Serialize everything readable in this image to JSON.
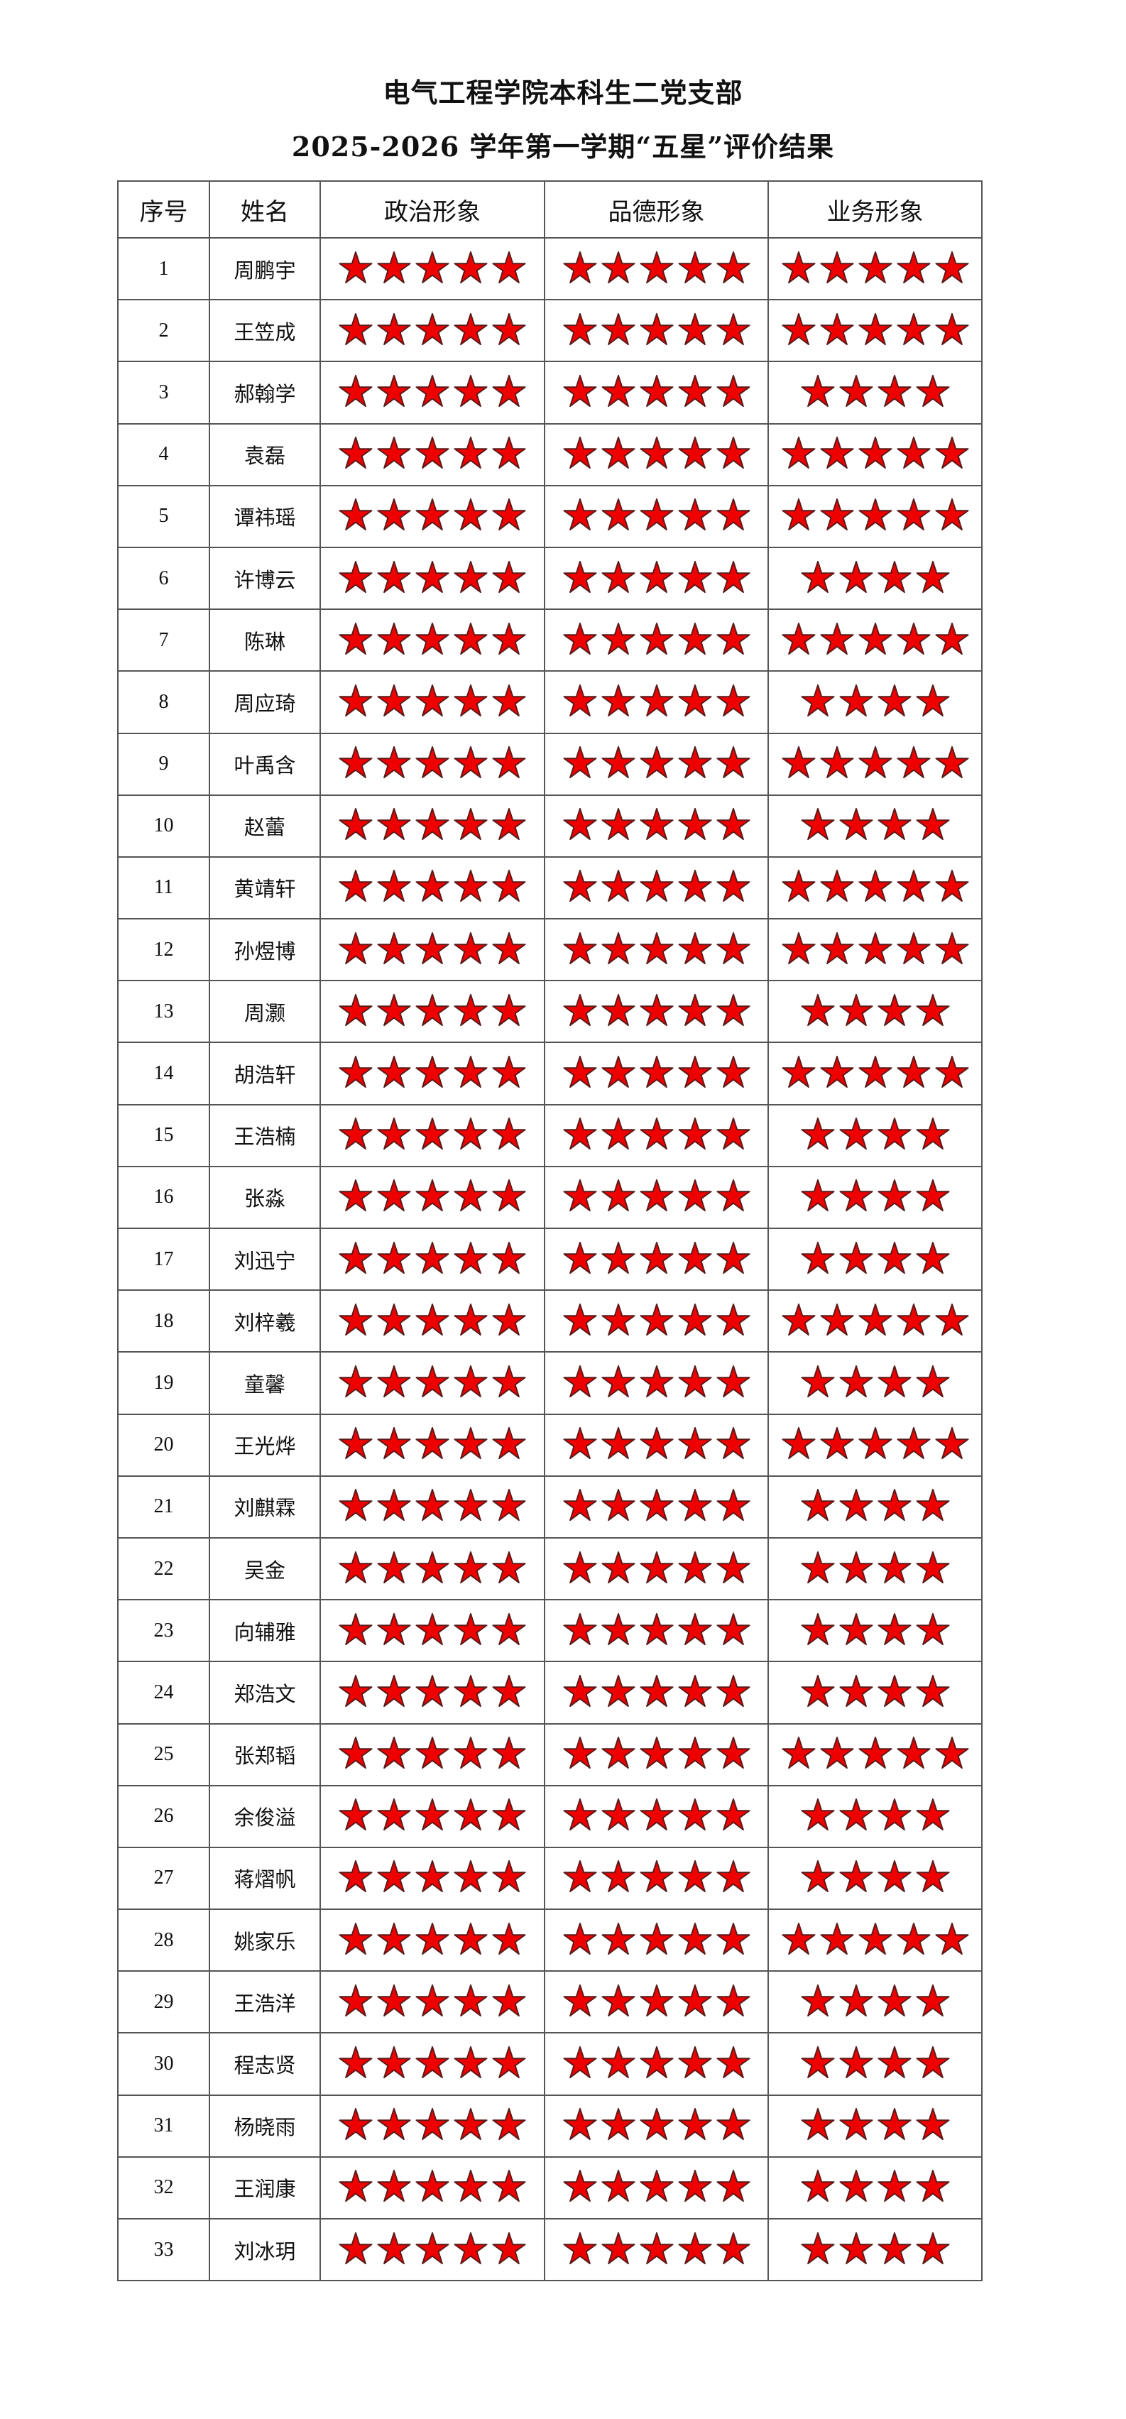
{
  "title": {
    "line1": "电气工程学院本科生二党支部",
    "line2": "2025-2026 学年第一学期“五星”评价结果"
  },
  "table": {
    "headers": [
      "序号",
      "姓名",
      "政治形象",
      "品德形象",
      "业务形象"
    ],
    "star_icon": "red-star-icon",
    "star_color": "#ee0000",
    "rows": [
      {
        "no": "1",
        "name": "周鹏宇",
        "political": 5,
        "moral": 5,
        "business": 5
      },
      {
        "no": "2",
        "name": "王笠成",
        "political": 5,
        "moral": 5,
        "business": 5
      },
      {
        "no": "3",
        "name": "郝翰学",
        "political": 5,
        "moral": 5,
        "business": 4
      },
      {
        "no": "4",
        "name": "袁磊",
        "political": 5,
        "moral": 5,
        "business": 5
      },
      {
        "no": "5",
        "name": "谭祎瑶",
        "political": 5,
        "moral": 5,
        "business": 5
      },
      {
        "no": "6",
        "name": "许博云",
        "political": 5,
        "moral": 5,
        "business": 4
      },
      {
        "no": "7",
        "name": "陈琳",
        "political": 5,
        "moral": 5,
        "business": 5
      },
      {
        "no": "8",
        "name": "周应琦",
        "political": 5,
        "moral": 5,
        "business": 4
      },
      {
        "no": "9",
        "name": "叶禹含",
        "political": 5,
        "moral": 5,
        "business": 5
      },
      {
        "no": "10",
        "name": "赵蕾",
        "political": 5,
        "moral": 5,
        "business": 4
      },
      {
        "no": "11",
        "name": "黄靖轩",
        "political": 5,
        "moral": 5,
        "business": 5
      },
      {
        "no": "12",
        "name": "孙煜博",
        "political": 5,
        "moral": 5,
        "business": 5
      },
      {
        "no": "13",
        "name": "周灏",
        "political": 5,
        "moral": 5,
        "business": 4
      },
      {
        "no": "14",
        "name": "胡浩轩",
        "political": 5,
        "moral": 5,
        "business": 5
      },
      {
        "no": "15",
        "name": "王浩楠",
        "political": 5,
        "moral": 5,
        "business": 4
      },
      {
        "no": "16",
        "name": "张淼",
        "political": 5,
        "moral": 5,
        "business": 4
      },
      {
        "no": "17",
        "name": "刘迅宁",
        "political": 5,
        "moral": 5,
        "business": 4
      },
      {
        "no": "18",
        "name": "刘梓羲",
        "political": 5,
        "moral": 5,
        "business": 5
      },
      {
        "no": "19",
        "name": "童馨",
        "political": 5,
        "moral": 5,
        "business": 4
      },
      {
        "no": "20",
        "name": "王光烨",
        "political": 5,
        "moral": 5,
        "business": 5
      },
      {
        "no": "21",
        "name": "刘麒霖",
        "political": 5,
        "moral": 5,
        "business": 4
      },
      {
        "no": "22",
        "name": "吴金",
        "political": 5,
        "moral": 5,
        "business": 4
      },
      {
        "no": "23",
        "name": "向辅雅",
        "political": 5,
        "moral": 5,
        "business": 4
      },
      {
        "no": "24",
        "name": "郑浩文",
        "political": 5,
        "moral": 5,
        "business": 4
      },
      {
        "no": "25",
        "name": "张郑韬",
        "political": 5,
        "moral": 5,
        "business": 5
      },
      {
        "no": "26",
        "name": "余俊溢",
        "political": 5,
        "moral": 5,
        "business": 4
      },
      {
        "no": "27",
        "name": "蒋熠帆",
        "political": 5,
        "moral": 5,
        "business": 4
      },
      {
        "no": "28",
        "name": "姚家乐",
        "political": 5,
        "moral": 5,
        "business": 5
      },
      {
        "no": "29",
        "name": "王浩洋",
        "political": 5,
        "moral": 5,
        "business": 4
      },
      {
        "no": "30",
        "name": "程志贤",
        "political": 5,
        "moral": 5,
        "business": 4
      },
      {
        "no": "31",
        "name": "杨晓雨",
        "political": 5,
        "moral": 5,
        "business": 4
      },
      {
        "no": "32",
        "name": "王润康",
        "political": 5,
        "moral": 5,
        "business": 4
      },
      {
        "no": "33",
        "name": "刘冰玥",
        "political": 5,
        "moral": 5,
        "business": 4
      }
    ]
  }
}
